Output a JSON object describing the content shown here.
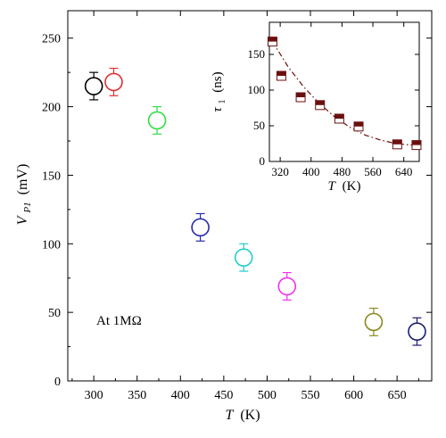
{
  "chart_data": [
    {
      "type": "scatter",
      "xlabel": "T (K)",
      "xlabel_italic": "T",
      "xlabel_unit": "(K)",
      "ylabel": "V_P1 (mV)",
      "ylabel_main": "V",
      "ylabel_sub": "P1",
      "ylabel_unit": "(mV)",
      "xlim": [
        270,
        690
      ],
      "ylim": [
        0,
        270
      ],
      "xticks": [
        "300",
        "350",
        "400",
        "450",
        "500",
        "550",
        "600",
        "650"
      ],
      "yticks": [
        "0",
        "50",
        "100",
        "150",
        "200",
        "250"
      ],
      "annotation": "At 1MΩ",
      "grid": false,
      "points": [
        {
          "x": 300,
          "y": 215,
          "err": 10,
          "color": "#000000"
        },
        {
          "x": 323,
          "y": 218,
          "err": 10,
          "color": "#e03030"
        },
        {
          "x": 373,
          "y": 190,
          "err": 10,
          "color": "#33dd44"
        },
        {
          "x": 423,
          "y": 112,
          "err": 10,
          "color": "#2a2aa8"
        },
        {
          "x": 473,
          "y": 90,
          "err": 10,
          "color": "#22cccc"
        },
        {
          "x": 523,
          "y": 69,
          "err": 10,
          "color": "#ee33ee"
        },
        {
          "x": 623,
          "y": 43,
          "err": 10,
          "color": "#8b8b22"
        },
        {
          "x": 673,
          "y": 36,
          "err": 10,
          "color": "#1a1a6e"
        }
      ]
    },
    {
      "type": "scatter",
      "inset": true,
      "xlabel": "T (K)",
      "xlabel_italic": "T",
      "xlabel_unit": "(K)",
      "ylabel": "τ1 (ns)",
      "ylabel_main": "τ",
      "ylabel_sub": "1",
      "ylabel_unit": "(ns)",
      "xlim": [
        292,
        680
      ],
      "ylim": [
        0,
        195
      ],
      "xticks": [
        "320",
        "400",
        "480",
        "560",
        "640"
      ],
      "xtick_values": [
        320,
        400,
        480,
        560,
        640
      ],
      "yticks": [
        "0",
        "50",
        "100",
        "150"
      ],
      "ytick_values": [
        0,
        50,
        100,
        150
      ],
      "marker_color": "#6b0f0f",
      "fit_line_color": "#6b0f0f",
      "series": [
        {
          "x": [
            300,
            323,
            373,
            423,
            473,
            523,
            623,
            673
          ],
          "y": [
            168,
            120,
            90,
            79,
            60,
            49,
            24,
            23
          ]
        }
      ],
      "fit": {
        "x": [
          300,
          340,
          380,
          420,
          460,
          500,
          540,
          580,
          620,
          660,
          680
        ],
        "y": [
          168,
          133,
          105,
          82,
          63,
          48,
          37,
          30,
          25,
          23,
          23
        ]
      }
    }
  ]
}
